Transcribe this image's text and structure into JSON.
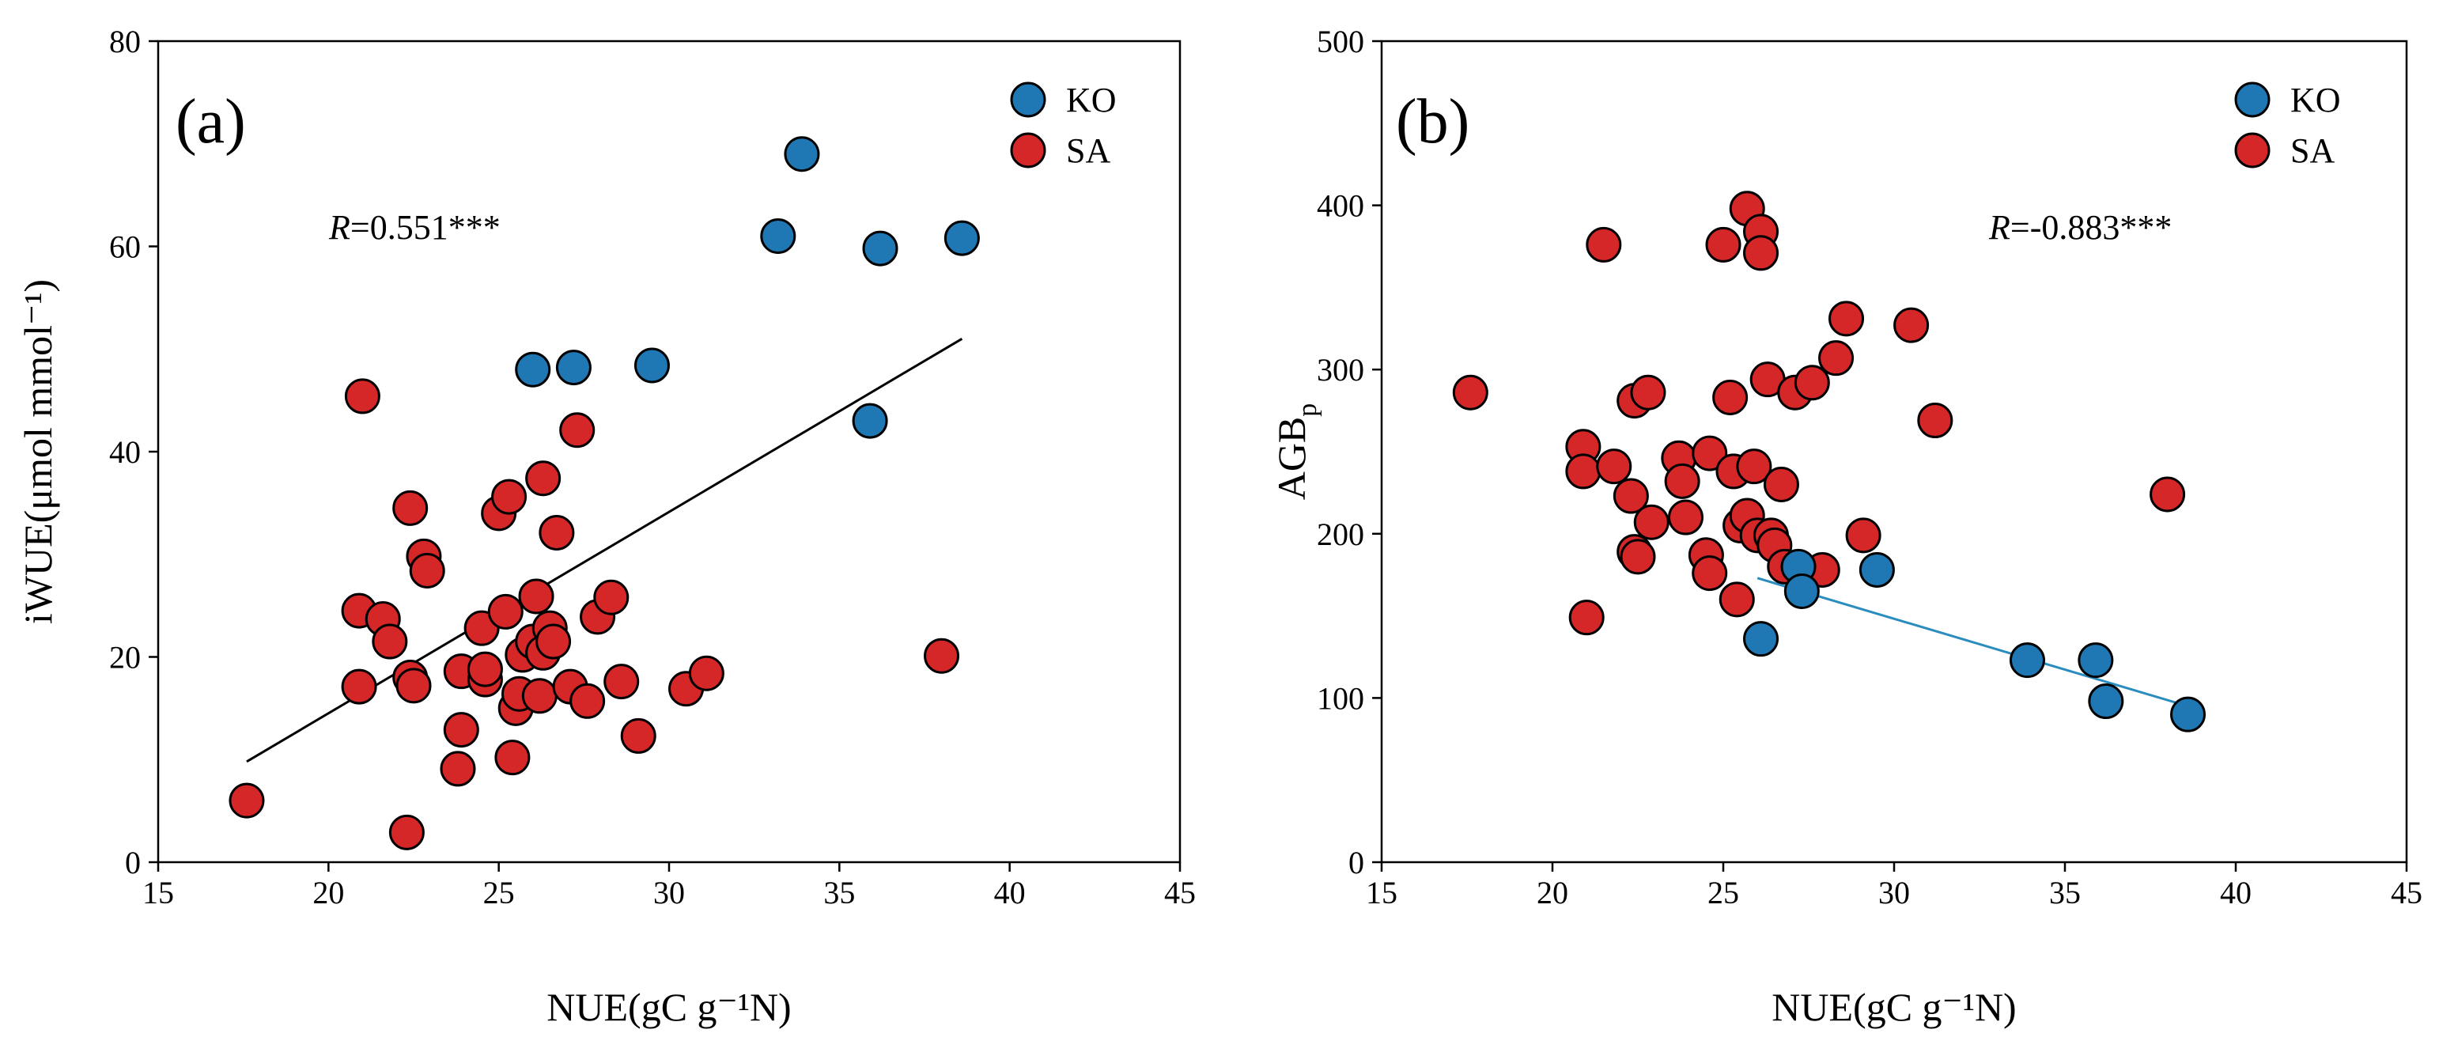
{
  "chart_data": [
    {
      "type": "scatter",
      "panel_label": "(a)",
      "xlabel": "NUE(gC g⁻¹N)",
      "ylabel": "iWUE(μmol mmol⁻¹)",
      "xlim": [
        15,
        45
      ],
      "ylim": [
        0,
        80
      ],
      "xticks": [
        15,
        20,
        25,
        30,
        35,
        40,
        45
      ],
      "yticks": [
        0,
        20,
        40,
        60,
        80
      ],
      "grid": false,
      "legend_position": "top-right",
      "annotation": {
        "r_symbol": "R",
        "value": "=0.551***"
      },
      "fit_line": {
        "series": "all",
        "x": [
          17.6,
          38.6
        ],
        "y": [
          9.8,
          51.0
        ],
        "color": "#000000"
      },
      "series": [
        {
          "name": "KO",
          "color": "#1f77b4",
          "points": [
            [
              26.0,
              48.0
            ],
            [
              27.2,
              48.2
            ],
            [
              29.5,
              48.4
            ],
            [
              33.2,
              61.0
            ],
            [
              33.9,
              69.0
            ],
            [
              35.9,
              43.0
            ],
            [
              36.2,
              59.8
            ],
            [
              38.6,
              60.8
            ]
          ]
        },
        {
          "name": "SA",
          "color": "#d62728",
          "points": [
            [
              17.6,
              6.0
            ],
            [
              20.9,
              17.1
            ],
            [
              20.9,
              24.5
            ],
            [
              21.0,
              45.4
            ],
            [
              21.6,
              23.7
            ],
            [
              21.8,
              21.5
            ],
            [
              22.3,
              2.9
            ],
            [
              22.4,
              34.5
            ],
            [
              22.4,
              18.0
            ],
            [
              22.5,
              17.2
            ],
            [
              22.8,
              29.8
            ],
            [
              22.9,
              28.4
            ],
            [
              23.8,
              9.1
            ],
            [
              23.9,
              12.9
            ],
            [
              23.9,
              18.6
            ],
            [
              24.5,
              22.8
            ],
            [
              24.6,
              17.8
            ],
            [
              24.6,
              18.8
            ],
            [
              25.0,
              34.0
            ],
            [
              25.2,
              24.4
            ],
            [
              25.3,
              35.6
            ],
            [
              25.4,
              10.2
            ],
            [
              25.5,
              15.0
            ],
            [
              25.6,
              16.4
            ],
            [
              25.7,
              20.2
            ],
            [
              26.0,
              21.5
            ],
            [
              26.1,
              25.9
            ],
            [
              26.2,
              16.2
            ],
            [
              26.3,
              20.4
            ],
            [
              26.3,
              37.4
            ],
            [
              26.5,
              22.8
            ],
            [
              26.6,
              21.5
            ],
            [
              26.7,
              32.1
            ],
            [
              27.1,
              17.1
            ],
            [
              27.3,
              42.1
            ],
            [
              27.6,
              15.7
            ],
            [
              27.9,
              23.9
            ],
            [
              28.3,
              25.8
            ],
            [
              28.6,
              17.6
            ],
            [
              29.1,
              12.3
            ],
            [
              30.5,
              16.9
            ],
            [
              31.1,
              18.4
            ],
            [
              38.0,
              20.1
            ]
          ]
        }
      ]
    },
    {
      "type": "scatter",
      "panel_label": "(b)",
      "xlabel": "NUE(gC g⁻¹N)",
      "ylabel": "AGB",
      "ylabel_subscript": "p",
      "xlim": [
        15,
        45
      ],
      "ylim": [
        0,
        500
      ],
      "xticks": [
        15,
        20,
        25,
        30,
        35,
        40,
        45
      ],
      "yticks": [
        0,
        100,
        200,
        300,
        400,
        500
      ],
      "grid": false,
      "legend_position": "top-right",
      "annotation": {
        "r_symbol": "R",
        "value": "=-0.883***"
      },
      "fit_line": {
        "series": "KO",
        "x": [
          26.0,
          38.6
        ],
        "y": [
          173,
          95
        ],
        "color": "#2b8cbe"
      },
      "series": [
        {
          "name": "KO",
          "color": "#1f77b4",
          "points": [
            [
              26.1,
              136
            ],
            [
              27.2,
              180
            ],
            [
              27.3,
              165
            ],
            [
              29.5,
              178
            ],
            [
              33.9,
              123
            ],
            [
              35.9,
              123
            ],
            [
              36.2,
              98
            ],
            [
              38.6,
              90
            ]
          ]
        },
        {
          "name": "SA",
          "color": "#d62728",
          "points": [
            [
              17.6,
              286
            ],
            [
              20.9,
              253
            ],
            [
              20.9,
              238
            ],
            [
              21.0,
              149
            ],
            [
              21.5,
              376
            ],
            [
              21.8,
              241
            ],
            [
              22.3,
              223
            ],
            [
              22.4,
              281
            ],
            [
              22.4,
              189
            ],
            [
              22.5,
              186
            ],
            [
              22.8,
              286
            ],
            [
              22.9,
              207
            ],
            [
              23.7,
              246
            ],
            [
              23.8,
              232
            ],
            [
              23.9,
              210
            ],
            [
              24.5,
              187
            ],
            [
              24.6,
              176
            ],
            [
              24.6,
              249
            ],
            [
              25.0,
              376
            ],
            [
              25.2,
              283
            ],
            [
              25.3,
              238
            ],
            [
              25.4,
              160
            ],
            [
              25.5,
              205
            ],
            [
              25.7,
              398
            ],
            [
              25.7,
              211
            ],
            [
              25.9,
              241
            ],
            [
              26.0,
              199
            ],
            [
              26.1,
              384
            ],
            [
              26.1,
              371
            ],
            [
              26.3,
              294
            ],
            [
              26.4,
              199
            ],
            [
              26.5,
              193
            ],
            [
              26.7,
              230
            ],
            [
              26.8,
              180
            ],
            [
              27.1,
              286
            ],
            [
              27.6,
              292
            ],
            [
              27.9,
              178
            ],
            [
              28.3,
              307
            ],
            [
              28.6,
              331
            ],
            [
              29.1,
              199
            ],
            [
              30.5,
              327
            ],
            [
              31.2,
              269
            ],
            [
              38.0,
              224
            ]
          ]
        }
      ]
    }
  ]
}
